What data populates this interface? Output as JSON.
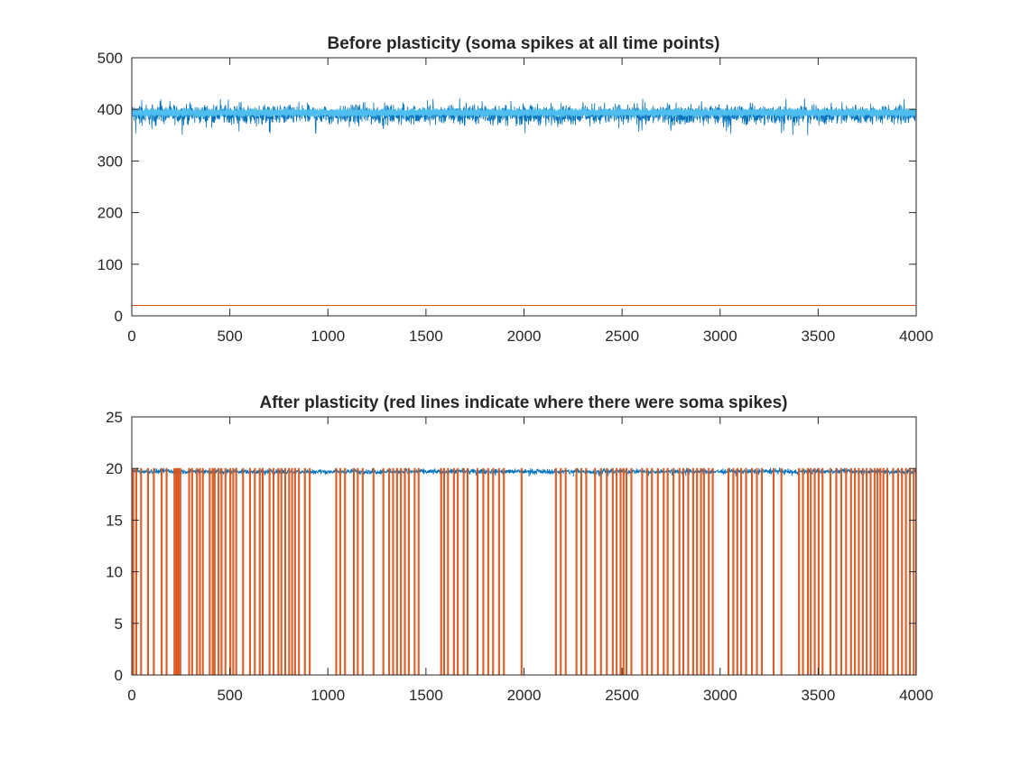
{
  "chart_data": [
    {
      "type": "line",
      "title": "Before plasticity (soma spikes at all time points)",
      "xlabel": "",
      "ylabel": "",
      "xlim": [
        0,
        4000
      ],
      "ylim": [
        0,
        500
      ],
      "x_ticks": [
        0,
        500,
        1000,
        1500,
        2000,
        2500,
        3000,
        3500,
        4000
      ],
      "y_ticks": [
        0,
        100,
        200,
        300,
        400,
        500
      ],
      "grid": false,
      "legend": "none",
      "series": [
        {
          "color": "#0072BD",
          "style": "noisy trace",
          "approx_mean": 390,
          "approx_range": [
            350,
            422
          ],
          "x_range": [
            0,
            4000
          ]
        },
        {
          "color": "#4DBEEE",
          "style": "dense band",
          "approx_range": [
            385,
            402
          ],
          "x_range": [
            0,
            4000
          ]
        },
        {
          "color": "#D95319",
          "style": "constant line",
          "value": 20,
          "x_range": [
            0,
            4000
          ]
        }
      ]
    },
    {
      "type": "line",
      "title": "After plasticity (red lines indicate where there were soma spikes)",
      "xlabel": "",
      "ylabel": "",
      "xlim": [
        0,
        4000
      ],
      "ylim": [
        0,
        25
      ],
      "x_ticks": [
        0,
        500,
        1000,
        1500,
        2000,
        2500,
        3000,
        3500,
        4000
      ],
      "y_ticks": [
        0,
        5,
        10,
        15,
        20,
        25
      ],
      "grid": false,
      "legend": "none",
      "series": [
        {
          "color": "#0072BD",
          "style": "noisy trace",
          "approx_mean": 19.7,
          "approx_range": [
            19.2,
            20.1
          ],
          "x_range": [
            0,
            4000
          ]
        },
        {
          "color": "#D95319",
          "style": "spike train",
          "low": 0,
          "high": 20,
          "spike_times": [
            5,
            20,
            45,
            80,
            110,
            150,
            175,
            215,
            222,
            230,
            238,
            245,
            290,
            305,
            330,
            345,
            360,
            395,
            410,
            420,
            440,
            455,
            475,
            500,
            515,
            530,
            565,
            600,
            625,
            650,
            665,
            700,
            720,
            745,
            760,
            780,
            800,
            815,
            830,
            850,
            880,
            905,
            1040,
            1060,
            1085,
            1130,
            1150,
            1175,
            1230,
            1280,
            1310,
            1330,
            1350,
            1370,
            1390,
            1410,
            1440,
            1460,
            1575,
            1590,
            1610,
            1640,
            1660,
            1690,
            1710,
            1760,
            1790,
            1815,
            1840,
            1870,
            1895,
            1985,
            2160,
            2185,
            2210,
            2265,
            2290,
            2315,
            2360,
            2390,
            2420,
            2450,
            2470,
            2490,
            2505,
            2520,
            2545,
            2600,
            2625,
            2650,
            2680,
            2710,
            2730,
            2760,
            2790,
            2810,
            2835,
            2860,
            2880,
            2900,
            2915,
            2940,
            2960,
            3040,
            3065,
            3085,
            3105,
            3130,
            3160,
            3185,
            3210,
            3270,
            3310,
            3400,
            3420,
            3445,
            3460,
            3480,
            3500,
            3520,
            3560,
            3590,
            3615,
            3640,
            3665,
            3685,
            3705,
            3725,
            3745,
            3765,
            3785,
            3800,
            3815,
            3830,
            3850,
            3880,
            3905,
            3925,
            3945,
            3965,
            3985,
            3998
          ]
        }
      ]
    }
  ]
}
